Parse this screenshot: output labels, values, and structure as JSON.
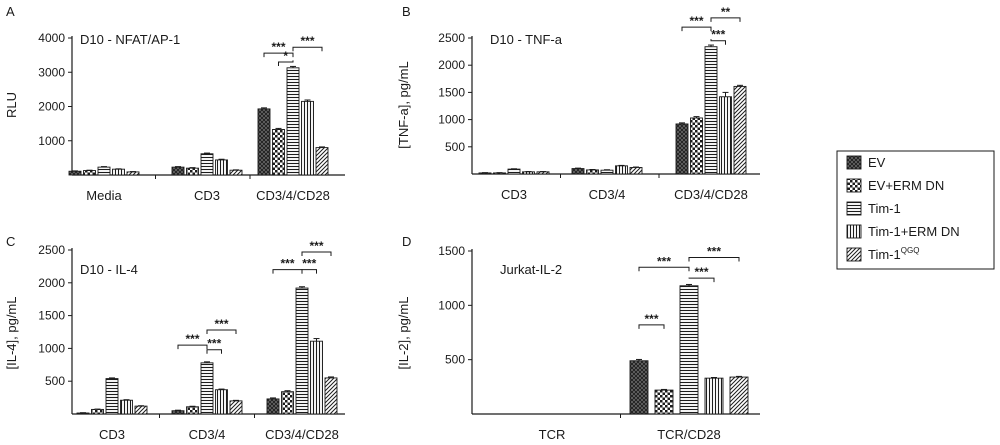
{
  "legend": {
    "items": [
      {
        "label": "EV",
        "pattern": "pat-ev"
      },
      {
        "label": "EV+ERM DN",
        "pattern": "pat-everm"
      },
      {
        "label": "Tim-1",
        "pattern": "pat-tim"
      },
      {
        "label": "Tim-1+ERM DN",
        "pattern": "pat-timerm"
      },
      {
        "label": "Tim-1",
        "sup": "QGQ",
        "pattern": "pat-qgq"
      }
    ]
  },
  "chart_data": [
    {
      "type": "bar",
      "panel_letter": "A",
      "title": "D10 - NFAT/AP-1",
      "ylabel": "RLU",
      "ylim": [
        0,
        4000
      ],
      "yticks": [
        1000,
        2000,
        3000,
        4000
      ],
      "categories": [
        "Media",
        "CD3",
        "CD3/4/CD28"
      ],
      "series": [
        {
          "name": "EV",
          "values": [
            110,
            230,
            1930
          ],
          "errors": [
            10,
            15,
            30
          ]
        },
        {
          "name": "EV+ERM DN",
          "values": [
            130,
            200,
            1330
          ],
          "errors": [
            10,
            15,
            30
          ]
        },
        {
          "name": "Tim-1",
          "values": [
            230,
            620,
            3130
          ],
          "errors": [
            15,
            20,
            40
          ]
        },
        {
          "name": "Tim-1+ERM DN",
          "values": [
            170,
            440,
            2150
          ],
          "errors": [
            10,
            20,
            40
          ]
        },
        {
          "name": "Tim-1QGQ",
          "values": [
            90,
            140,
            800
          ],
          "errors": [
            10,
            10,
            20
          ]
        }
      ],
      "significance": [
        {
          "group": 2,
          "from": 0,
          "to": 2,
          "label": "***",
          "level": 3560
        },
        {
          "group": 2,
          "from": 1,
          "to": 2,
          "label": "*",
          "level": 3300
        },
        {
          "group": 2,
          "from": 2,
          "to": 4,
          "label": "***",
          "level": 3730
        }
      ]
    },
    {
      "type": "bar",
      "panel_letter": "B",
      "title": "D10 - TNF-a",
      "ylabel": "[TNF-a], pg/mL",
      "ylim": [
        0,
        2500
      ],
      "yticks": [
        500,
        1000,
        1500,
        2000,
        2500
      ],
      "categories": [
        "CD3",
        "CD3/4",
        "CD3/4/CD28"
      ],
      "series": [
        {
          "name": "EV",
          "values": [
            20,
            100,
            920
          ],
          "errors": [
            5,
            8,
            20
          ]
        },
        {
          "name": "EV+ERM DN",
          "values": [
            20,
            75,
            1030
          ],
          "errors": [
            5,
            8,
            25
          ]
        },
        {
          "name": "Tim-1",
          "values": [
            90,
            70,
            2340
          ],
          "errors": [
            6,
            8,
            30
          ]
        },
        {
          "name": "Tim-1+ERM DN",
          "values": [
            40,
            150,
            1420
          ],
          "errors": [
            5,
            8,
            80
          ]
        },
        {
          "name": "Tim-1QGQ",
          "values": [
            40,
            120,
            1610
          ],
          "errors": [
            5,
            8,
            20
          ]
        }
      ],
      "significance": [
        {
          "group": 2,
          "from": 0,
          "to": 2,
          "label": "***",
          "level": 2700
        },
        {
          "group": 2,
          "from": 2,
          "to": 3,
          "label": "***",
          "level": 2450
        },
        {
          "group": 2,
          "from": 2,
          "to": 4,
          "label": "**",
          "level": 2870
        }
      ]
    },
    {
      "type": "bar",
      "panel_letter": "C",
      "title": "D10 - IL-4",
      "ylabel": "[IL-4], pg/mL",
      "ylim": [
        0,
        2500
      ],
      "yticks": [
        500,
        1000,
        1500,
        2000,
        2500
      ],
      "categories": [
        "CD3",
        "CD3/4",
        "CD3/4/CD28"
      ],
      "series": [
        {
          "name": "EV",
          "values": [
            15,
            50,
            230
          ],
          "errors": [
            5,
            8,
            15
          ]
        },
        {
          "name": "EV+ERM DN",
          "values": [
            70,
            110,
            340
          ],
          "errors": [
            5,
            8,
            15
          ]
        },
        {
          "name": "Tim-1",
          "values": [
            540,
            780,
            1920
          ],
          "errors": [
            10,
            15,
            20
          ]
        },
        {
          "name": "Tim-1+ERM DN",
          "values": [
            210,
            370,
            1110
          ],
          "errors": [
            8,
            10,
            40
          ]
        },
        {
          "name": "Tim-1QGQ",
          "values": [
            120,
            200,
            550
          ],
          "errors": [
            6,
            8,
            15
          ]
        }
      ],
      "significance": [
        {
          "group": 1,
          "from": 0,
          "to": 2,
          "label": "***",
          "level": 1050
        },
        {
          "group": 1,
          "from": 2,
          "to": 3,
          "label": "***",
          "level": 980
        },
        {
          "group": 1,
          "from": 2,
          "to": 4,
          "label": "***",
          "level": 1280
        },
        {
          "group": 2,
          "from": 0,
          "to": 2,
          "label": "***",
          "level": 2200
        },
        {
          "group": 2,
          "from": 2,
          "to": 3,
          "label": "***",
          "level": 2200
        },
        {
          "group": 2,
          "from": 2,
          "to": 4,
          "label": "***",
          "level": 2470
        }
      ]
    },
    {
      "type": "bar",
      "panel_letter": "D",
      "title": "Jurkat-IL-2",
      "ylabel": "[IL-2], pg/mL",
      "ylim": [
        0,
        1500
      ],
      "yticks": [
        500,
        1000,
        1500
      ],
      "categories": [
        "TCR",
        "TCR/CD28"
      ],
      "series": [
        {
          "name": "EV",
          "values": [
            0,
            490
          ],
          "errors": [
            0,
            12
          ]
        },
        {
          "name": "EV+ERM DN",
          "values": [
            0,
            220
          ],
          "errors": [
            0,
            6
          ]
        },
        {
          "name": "Tim-1",
          "values": [
            0,
            1180
          ],
          "errors": [
            0,
            12
          ]
        },
        {
          "name": "Tim-1+ERM DN",
          "values": [
            0,
            330
          ],
          "errors": [
            0,
            6
          ]
        },
        {
          "name": "Tim-1QGQ",
          "values": [
            0,
            340
          ],
          "errors": [
            0,
            6
          ]
        }
      ],
      "significance": [
        {
          "group": 1,
          "from": 0,
          "to": 1,
          "label": "***",
          "level": 820
        },
        {
          "group": 1,
          "from": 0,
          "to": 2,
          "label": "***",
          "level": 1350
        },
        {
          "group": 1,
          "from": 2,
          "to": 3,
          "label": "***",
          "level": 1250
        },
        {
          "group": 1,
          "from": 2,
          "to": 4,
          "label": "***",
          "level": 1440
        }
      ]
    }
  ]
}
